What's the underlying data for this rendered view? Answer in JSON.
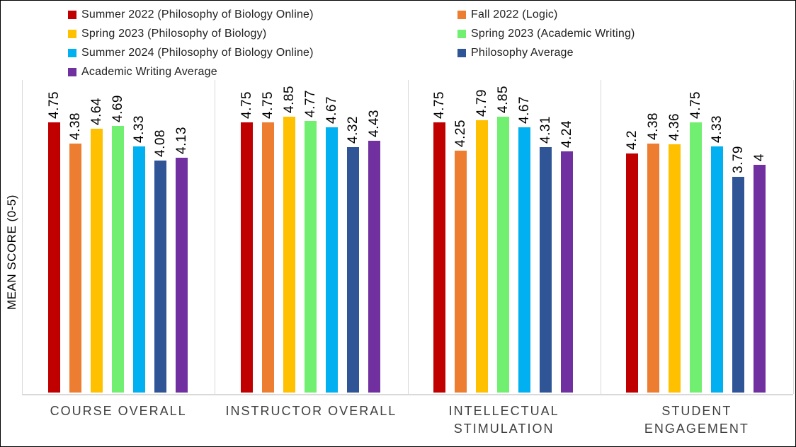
{
  "chart_data": {
    "type": "bar",
    "title": "",
    "xlabel": "",
    "ylabel": "MEAN SCORE (0-5)",
    "ylim": [
      0,
      5
    ],
    "grid": "vertical category separators only, light gray",
    "legend_position": "top-left, two columns",
    "data_label_orientation": "rotated 90deg, above bars",
    "categories": [
      "COURSE OVERALL",
      "INSTRUCTOR OVERALL",
      "INTELLECTUAL\nSTIMULATION",
      "STUDENT\nENGAGEMENT"
    ],
    "series": [
      {
        "name": "Summer 2022 (Philosophy of Biology Online)",
        "color": "#C00000",
        "values": [
          4.75,
          4.75,
          4.75,
          4.2
        ]
      },
      {
        "name": "Fall 2022 (Logic)",
        "color": "#ED7D31",
        "values": [
          4.38,
          4.75,
          4.25,
          4.38
        ]
      },
      {
        "name": "Spring 2023 (Philosophy of Biology)",
        "color": "#FFC000",
        "values": [
          4.64,
          4.85,
          4.79,
          4.36
        ]
      },
      {
        "name": "Spring 2023 (Academic Writing)",
        "color": "#71EF71",
        "values": [
          4.69,
          4.77,
          4.85,
          4.75
        ]
      },
      {
        "name": "Summer 2024 (Philosophy of Biology Online)",
        "color": "#00B0F0",
        "values": [
          4.33,
          4.67,
          4.67,
          4.33
        ]
      },
      {
        "name": "Philosophy Average",
        "color": "#2F5597",
        "values": [
          4.08,
          4.32,
          4.31,
          3.79
        ]
      },
      {
        "name": "Academic Writing Average",
        "color": "#7030A0",
        "values": [
          4.13,
          4.43,
          4.24,
          4
        ]
      }
    ],
    "colors": {
      "gridline": "#D9D9D9",
      "axis_line": "#D9D9D9",
      "category_label_text": "#404040",
      "legend_text": "#222222",
      "value_label_text": "#000000",
      "frame_border": "#000000"
    }
  }
}
